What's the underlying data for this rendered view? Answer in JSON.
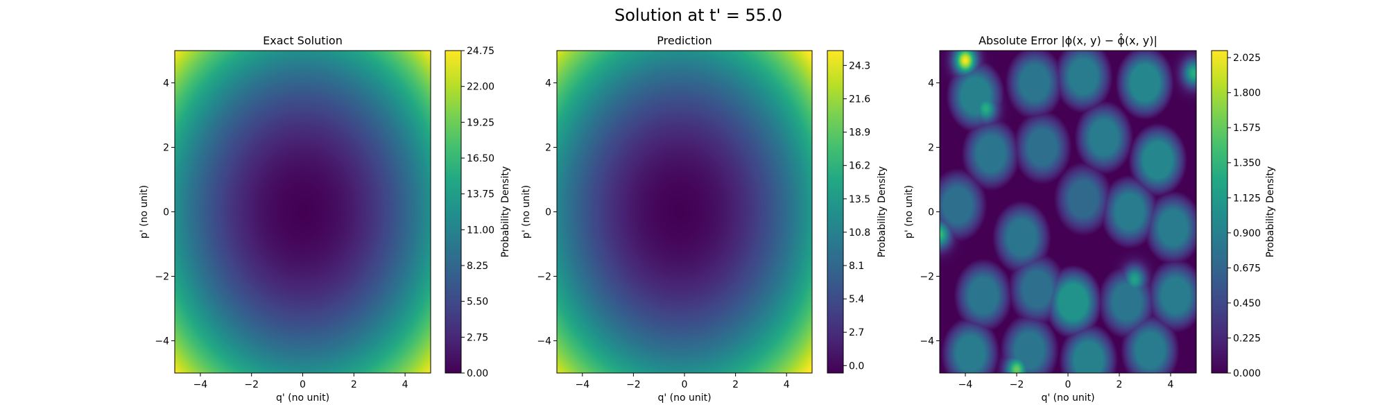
{
  "figure": {
    "suptitle": "Solution at t' = 55.0"
  },
  "chart_data": [
    {
      "type": "heatmap",
      "title": "Exact Solution",
      "xlabel": "q' (no unit)",
      "ylabel": "p' (no unit)",
      "xlim": [
        -5,
        5
      ],
      "ylim": [
        -5,
        5
      ],
      "xticks": [
        -4,
        -2,
        0,
        2,
        4
      ],
      "yticks": [
        -4,
        -2,
        0,
        2,
        4
      ],
      "xtick_labels": [
        "−4",
        "−2",
        "0",
        "2",
        "4"
      ],
      "ytick_labels": [
        "−4",
        "−2",
        "0",
        "2",
        "4"
      ],
      "field": {
        "form": "paraboloid",
        "center": [
          0,
          0
        ],
        "min": 0.0,
        "max": 24.75
      },
      "colormap": "viridis",
      "colorbar": {
        "label": "Probability Density",
        "range": [
          0.0,
          24.75
        ],
        "ticks": [
          0.0,
          2.75,
          5.5,
          8.25,
          11.0,
          13.75,
          16.5,
          19.25,
          22.0,
          24.75
        ],
        "tick_labels": [
          "0.00",
          "2.75",
          "5.50",
          "8.25",
          "11.00",
          "13.75",
          "16.50",
          "19.25",
          "22.00",
          "24.75"
        ]
      }
    },
    {
      "type": "heatmap",
      "title": "Prediction",
      "xlabel": "q' (no unit)",
      "ylabel": "p' (no unit)",
      "xlim": [
        -5,
        5
      ],
      "ylim": [
        -5,
        5
      ],
      "xticks": [
        -4,
        -2,
        0,
        2,
        4
      ],
      "yticks": [
        -4,
        -2,
        0,
        2,
        4
      ],
      "xtick_labels": [
        "−4",
        "−2",
        "0",
        "2",
        "4"
      ],
      "ytick_labels": [
        "−4",
        "−2",
        "0",
        "2",
        "4"
      ],
      "field": {
        "form": "paraboloid",
        "center": [
          -0.2,
          0
        ],
        "min": -0.6,
        "max": 25.5
      },
      "colormap": "viridis",
      "colorbar": {
        "label": "Probability Density",
        "range": [
          -0.6,
          25.5
        ],
        "ticks": [
          0.0,
          2.7,
          5.4,
          8.1,
          10.8,
          13.5,
          16.2,
          18.9,
          21.6,
          24.3
        ],
        "tick_labels": [
          "0.0",
          "2.7",
          "5.4",
          "8.1",
          "10.8",
          "13.5",
          "16.2",
          "18.9",
          "21.6",
          "24.3"
        ]
      }
    },
    {
      "type": "heatmap",
      "title": "Absolute Error |ϕ(x, y) − ϕ̂(x, y)|",
      "xlabel": "q' (no unit)",
      "ylabel": "p' (no unit)",
      "xlim": [
        -5,
        5
      ],
      "ylim": [
        -5,
        5
      ],
      "xticks": [
        -4,
        -2,
        0,
        2,
        4
      ],
      "yticks": [
        -4,
        -2,
        0,
        2,
        4
      ],
      "xtick_labels": [
        "−4",
        "−2",
        "0",
        "2",
        "4"
      ],
      "ytick_labels": [
        "−4",
        "−2",
        "0",
        "2",
        "4"
      ],
      "field": {
        "form": "error-blobs",
        "blobs": [
          {
            "x": -3.6,
            "y": 3.6,
            "v": 0.9
          },
          {
            "x": -1.3,
            "y": 4.0,
            "v": 0.8
          },
          {
            "x": 0.6,
            "y": 4.2,
            "v": 0.85
          },
          {
            "x": 3.0,
            "y": 4.0,
            "v": 0.95
          },
          {
            "x": -3.0,
            "y": 1.8,
            "v": 0.8
          },
          {
            "x": -1.0,
            "y": 2.0,
            "v": 0.75
          },
          {
            "x": 1.4,
            "y": 2.3,
            "v": 0.85
          },
          {
            "x": 3.5,
            "y": 1.6,
            "v": 0.95
          },
          {
            "x": -4.3,
            "y": 0.2,
            "v": 0.75
          },
          {
            "x": -1.8,
            "y": -0.8,
            "v": 0.8
          },
          {
            "x": 0.6,
            "y": 0.4,
            "v": 0.7
          },
          {
            "x": 2.4,
            "y": 0.0,
            "v": 0.85
          },
          {
            "x": 4.1,
            "y": -0.5,
            "v": 0.85
          },
          {
            "x": -3.3,
            "y": -2.6,
            "v": 0.8
          },
          {
            "x": -1.2,
            "y": -2.4,
            "v": 0.75
          },
          {
            "x": 0.2,
            "y": -2.8,
            "v": 1.05
          },
          {
            "x": 2.3,
            "y": -2.8,
            "v": 0.8
          },
          {
            "x": 4.2,
            "y": -2.6,
            "v": 0.85
          },
          {
            "x": -3.8,
            "y": -4.4,
            "v": 0.85
          },
          {
            "x": -1.5,
            "y": -4.3,
            "v": 0.8
          },
          {
            "x": 0.8,
            "y": -4.6,
            "v": 0.9
          },
          {
            "x": 3.2,
            "y": -4.3,
            "v": 0.85
          }
        ],
        "hotspots": [
          {
            "x": -4.0,
            "y": 4.7,
            "v": 2.05
          },
          {
            "x": -3.2,
            "y": 3.2,
            "v": 1.3
          },
          {
            "x": -5.0,
            "y": -0.7,
            "v": 1.4
          },
          {
            "x": -2.0,
            "y": -4.9,
            "v": 1.6
          },
          {
            "x": 2.6,
            "y": -2.1,
            "v": 1.2
          },
          {
            "x": 4.9,
            "y": 4.3,
            "v": 1.3
          }
        ]
      },
      "colormap": "viridis",
      "colorbar": {
        "label": "Probability Density",
        "range": [
          0.0,
          2.07
        ],
        "ticks": [
          0.0,
          0.225,
          0.45,
          0.675,
          0.9,
          1.125,
          1.35,
          1.575,
          1.8,
          2.025
        ],
        "tick_labels": [
          "0.000",
          "0.225",
          "0.450",
          "0.675",
          "0.900",
          "1.125",
          "1.350",
          "1.575",
          "1.800",
          "2.025"
        ]
      }
    }
  ]
}
